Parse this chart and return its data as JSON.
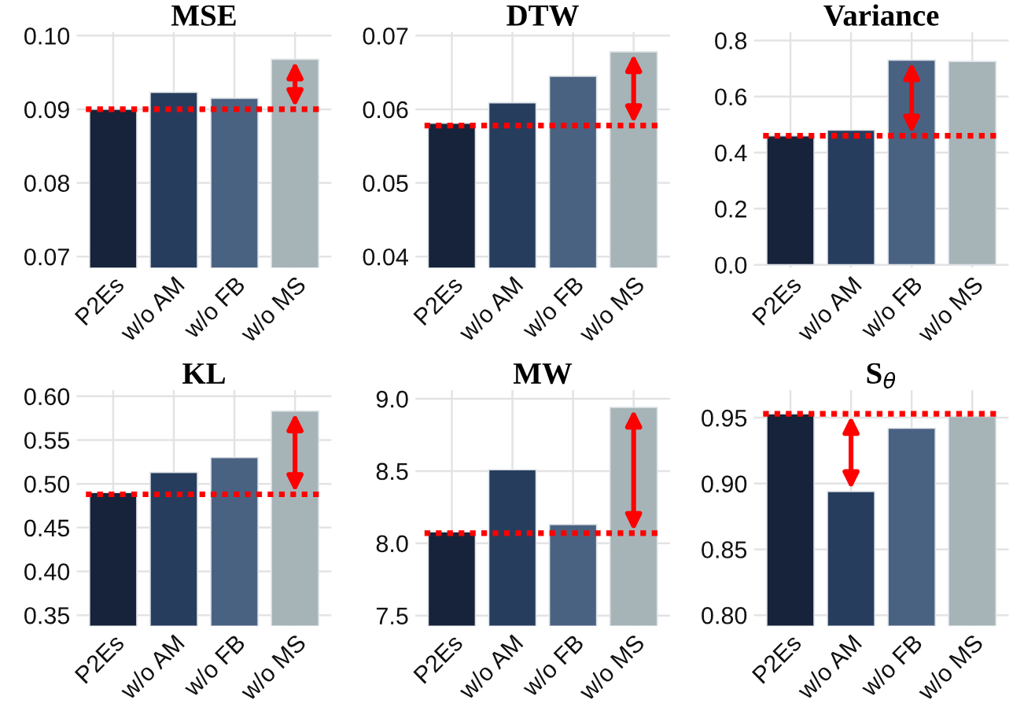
{
  "chart_data": [
    {
      "type": "bar",
      "title": "MSE",
      "categories": [
        "P2Es",
        "w/o AM",
        "w/o FB",
        "w/o MS"
      ],
      "values": [
        0.09,
        0.0923,
        0.0915,
        0.0968
      ],
      "colors": [
        "#16233a",
        "#263d5e",
        "#4a6282",
        "#a6b4b8"
      ],
      "ylim": [
        0.0685,
        0.1005
      ],
      "yticks": [
        {
          "value": 0.07,
          "label": "0.07"
        },
        {
          "value": 0.08,
          "label": "0.08"
        },
        {
          "value": 0.09,
          "label": "0.09"
        },
        {
          "value": 0.1,
          "label": "0.10"
        }
      ],
      "grid": true,
      "ref_lines": [
        {
          "axis": "y",
          "value": 0.09,
          "color": "#ff0000",
          "line_style": "dotted"
        }
      ]
    },
    {
      "type": "bar",
      "title": "DTW",
      "categories": [
        "P2Es",
        "w/o AM",
        "w/o FB",
        "w/o MS"
      ],
      "values": [
        0.0581,
        0.0609,
        0.0645,
        0.0678
      ],
      "colors": [
        "#16233a",
        "#263d5e",
        "#4a6282",
        "#a6b4b8"
      ],
      "ylim": [
        0.0385,
        0.0705
      ],
      "yticks": [
        {
          "value": 0.04,
          "label": "0.04"
        },
        {
          "value": 0.05,
          "label": "0.05"
        },
        {
          "value": 0.06,
          "label": "0.06"
        },
        {
          "value": 0.07,
          "label": "0.07"
        }
      ],
      "grid": true,
      "ref_lines": [
        {
          "axis": "y",
          "value": 0.0578,
          "color": "#ff0000",
          "line_style": "dotted"
        }
      ]
    },
    {
      "type": "bar",
      "title": "Variance",
      "categories": [
        "P2Es",
        "w/o AM",
        "w/o FB",
        "w/o MS"
      ],
      "values": [
        0.46,
        0.48,
        0.73,
        0.725
      ],
      "colors": [
        "#16233a",
        "#263d5e",
        "#4a6282",
        "#a6b4b8"
      ],
      "ylim": [
        -0.01,
        0.83
      ],
      "yticks": [
        {
          "value": 0.0,
          "label": "0.0"
        },
        {
          "value": 0.2,
          "label": "0.2"
        },
        {
          "value": 0.4,
          "label": "0.4"
        },
        {
          "value": 0.6,
          "label": "0.6"
        },
        {
          "value": 0.8,
          "label": "0.8"
        }
      ],
      "grid": true,
      "ref_lines": [
        {
          "axis": "y",
          "value": 0.46,
          "color": "#ff0000",
          "line_style": "dotted"
        }
      ]
    },
    {
      "type": "bar",
      "title": "KL",
      "categories": [
        "P2Es",
        "w/o AM",
        "w/o FB",
        "w/o MS"
      ],
      "values": [
        0.49,
        0.513,
        0.53,
        0.583
      ],
      "colors": [
        "#16233a",
        "#263d5e",
        "#4a6282",
        "#a6b4b8"
      ],
      "ylim": [
        0.338,
        0.607
      ],
      "yticks": [
        {
          "value": 0.35,
          "label": "0.35"
        },
        {
          "value": 0.4,
          "label": "0.40"
        },
        {
          "value": 0.45,
          "label": "0.45"
        },
        {
          "value": 0.5,
          "label": "0.50"
        },
        {
          "value": 0.55,
          "label": "0.55"
        },
        {
          "value": 0.6,
          "label": "0.60"
        }
      ],
      "grid": true,
      "ref_lines": [
        {
          "axis": "y",
          "value": 0.488,
          "color": "#ff0000",
          "line_style": "dotted"
        }
      ]
    },
    {
      "type": "bar",
      "title": "MW",
      "categories": [
        "P2Es",
        "w/o AM",
        "w/o FB",
        "w/o MS"
      ],
      "values": [
        8.08,
        8.51,
        8.13,
        8.94
      ],
      "colors": [
        "#16233a",
        "#263d5e",
        "#4a6282",
        "#a6b4b8"
      ],
      "ylim": [
        7.43,
        9.06
      ],
      "yticks": [
        {
          "value": 7.5,
          "label": "7.5"
        },
        {
          "value": 8.0,
          "label": "8.0"
        },
        {
          "value": 8.5,
          "label": "8.5"
        },
        {
          "value": 9.0,
          "label": "9.0"
        }
      ],
      "grid": true,
      "ref_lines": [
        {
          "axis": "y",
          "value": 8.07,
          "color": "#ff0000",
          "line_style": "dotted"
        }
      ]
    },
    {
      "type": "bar",
      "title": "S$_{θ}$",
      "categories": [
        "P2Es",
        "w/o AM",
        "w/o FB",
        "w/o MS"
      ],
      "values": [
        0.953,
        0.894,
        0.942,
        0.951
      ],
      "colors": [
        "#16233a",
        "#263d5e",
        "#4a6282",
        "#a6b4b8"
      ],
      "ylim": [
        0.792,
        0.971
      ],
      "yticks": [
        {
          "value": 0.8,
          "label": "0.80"
        },
        {
          "value": 0.85,
          "label": "0.85"
        },
        {
          "value": 0.9,
          "label": "0.90"
        },
        {
          "value": 0.95,
          "label": "0.95"
        }
      ],
      "grid": true,
      "ref_lines": [
        {
          "axis": "y",
          "value": 0.953,
          "color": "#ff0000",
          "line_style": "dotted"
        }
      ]
    }
  ]
}
